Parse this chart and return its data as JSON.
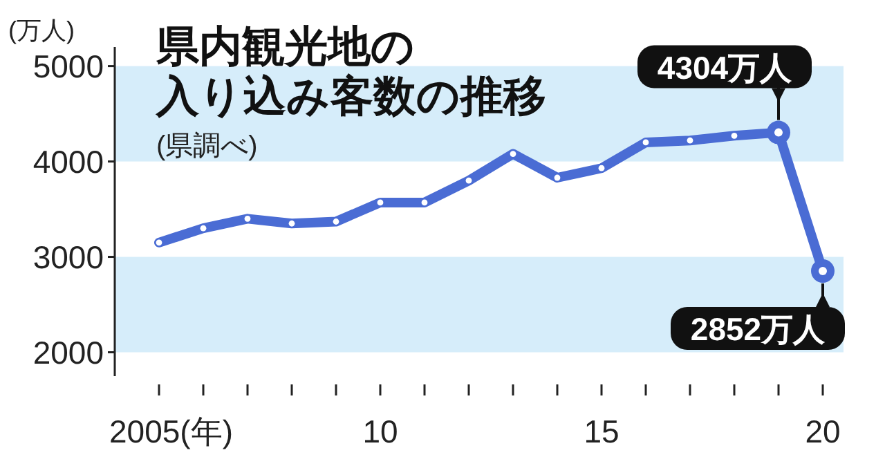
{
  "chart_data": {
    "type": "line",
    "title": "県内観光地の入り込み客数の推移",
    "subtitle": "(県調べ)",
    "ylabel": "(万人)",
    "x": [
      2005,
      2006,
      2007,
      2008,
      2009,
      2010,
      2011,
      2012,
      2013,
      2014,
      2015,
      2016,
      2017,
      2018,
      2019,
      2020
    ],
    "series": [
      {
        "color": "#4a6cd4",
        "values": [
          3150,
          3300,
          3400,
          3350,
          3370,
          3570,
          3570,
          3800,
          4080,
          3830,
          3930,
          4200,
          4220,
          4270,
          4304,
          2852
        ],
        "value_labels": [
          null,
          null,
          null,
          null,
          null,
          null,
          null,
          null,
          null,
          null,
          null,
          null,
          null,
          null,
          "4304万人",
          "2852万人"
        ]
      }
    ],
    "xlim": [
      2004,
      2020
    ],
    "ylim": [
      1750,
      5200
    ],
    "xticks": [
      {
        "value": 2005,
        "label": "2005(年)"
      },
      {
        "value": 2006,
        "label": null
      },
      {
        "value": 2007,
        "label": null
      },
      {
        "value": 2008,
        "label": null
      },
      {
        "value": 2009,
        "label": null
      },
      {
        "value": 2010,
        "label": "10"
      },
      {
        "value": 2011,
        "label": null
      },
      {
        "value": 2012,
        "label": null
      },
      {
        "value": 2013,
        "label": null
      },
      {
        "value": 2014,
        "label": null
      },
      {
        "value": 2015,
        "label": "15"
      },
      {
        "value": 2016,
        "label": null
      },
      {
        "value": 2017,
        "label": null
      },
      {
        "value": 2018,
        "label": null
      },
      {
        "value": 2019,
        "label": null
      },
      {
        "value": 2020,
        "label": "20"
      }
    ],
    "yticks": [
      2000,
      3000,
      4000,
      5000
    ],
    "bands": [
      {
        "axis": "y",
        "from": 2000,
        "to": 3000,
        "color": "#d6edfa"
      },
      {
        "axis": "y",
        "from": 4000,
        "to": 5000,
        "color": "#d6edfa"
      }
    ],
    "marker": "circle",
    "grid": false
  }
}
